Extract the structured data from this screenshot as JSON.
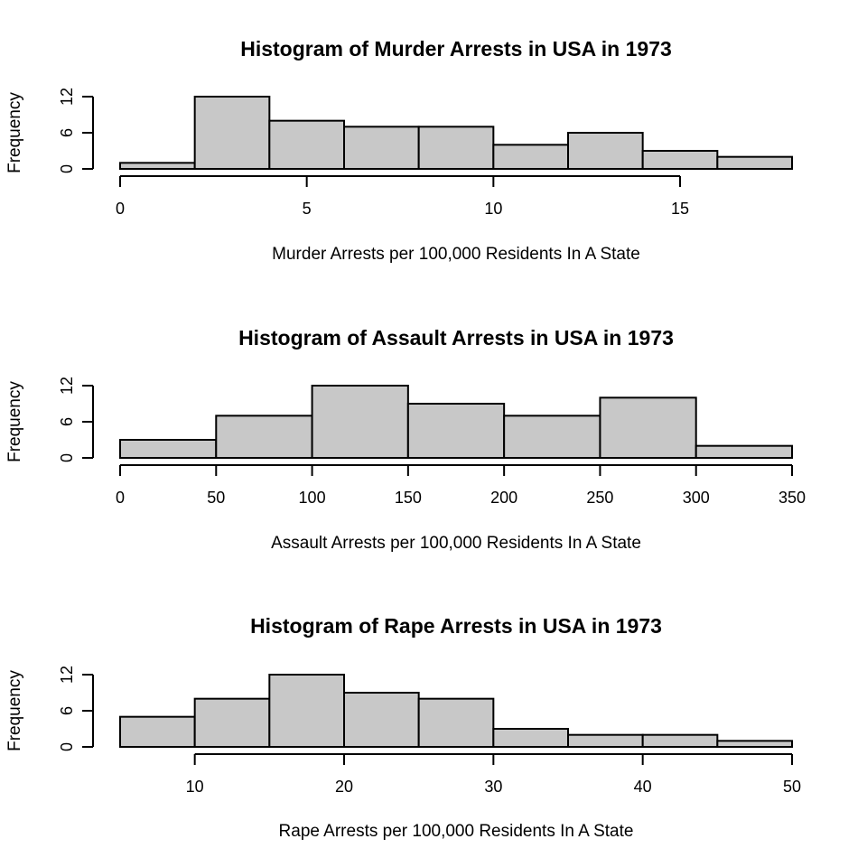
{
  "colors": {
    "bar_fill": "#c8c8c8",
    "stroke": "#000000",
    "background": "#ffffff"
  },
  "chart_data": [
    {
      "type": "bar",
      "title": "Histogram of Murder Arrests in USA in 1973",
      "xlabel": "Murder Arrests per 100,000 Residents In A State",
      "ylabel": "Frequency",
      "breaks": [
        0,
        2,
        4,
        6,
        8,
        10,
        12,
        14,
        16,
        18
      ],
      "values": [
        1,
        12,
        8,
        7,
        7,
        4,
        6,
        3,
        2
      ],
      "xlim": [
        0,
        18
      ],
      "ylim": [
        0,
        12
      ],
      "xticks": [
        0,
        5,
        10,
        15
      ],
      "yticks": [
        0,
        6,
        12
      ],
      "grid": false,
      "legend": "none"
    },
    {
      "type": "bar",
      "title": "Histogram of Assault Arrests in USA in 1973",
      "xlabel": "Assault Arrests per 100,000 Residents In A State",
      "ylabel": "Frequency",
      "breaks": [
        0,
        50,
        100,
        150,
        200,
        250,
        300,
        350
      ],
      "values": [
        3,
        7,
        12,
        9,
        7,
        10,
        2
      ],
      "xlim": [
        0,
        350
      ],
      "ylim": [
        0,
        12
      ],
      "xticks": [
        0,
        50,
        100,
        150,
        200,
        250,
        300,
        350
      ],
      "yticks": [
        0,
        6,
        12
      ],
      "grid": false,
      "legend": "none"
    },
    {
      "type": "bar",
      "title": "Histogram of Rape Arrests in USA in 1973",
      "xlabel": "Rape Arrests per 100,000 Residents In A State",
      "ylabel": "Frequency",
      "breaks": [
        5,
        10,
        15,
        20,
        25,
        30,
        35,
        40,
        45,
        50
      ],
      "values": [
        5,
        8,
        12,
        9,
        8,
        3,
        2,
        2,
        1
      ],
      "xlim": [
        5,
        50
      ],
      "ylim": [
        0,
        12
      ],
      "xticks": [
        10,
        20,
        30,
        40,
        50
      ],
      "yticks": [
        0,
        6,
        12
      ],
      "grid": false,
      "legend": "none"
    }
  ]
}
